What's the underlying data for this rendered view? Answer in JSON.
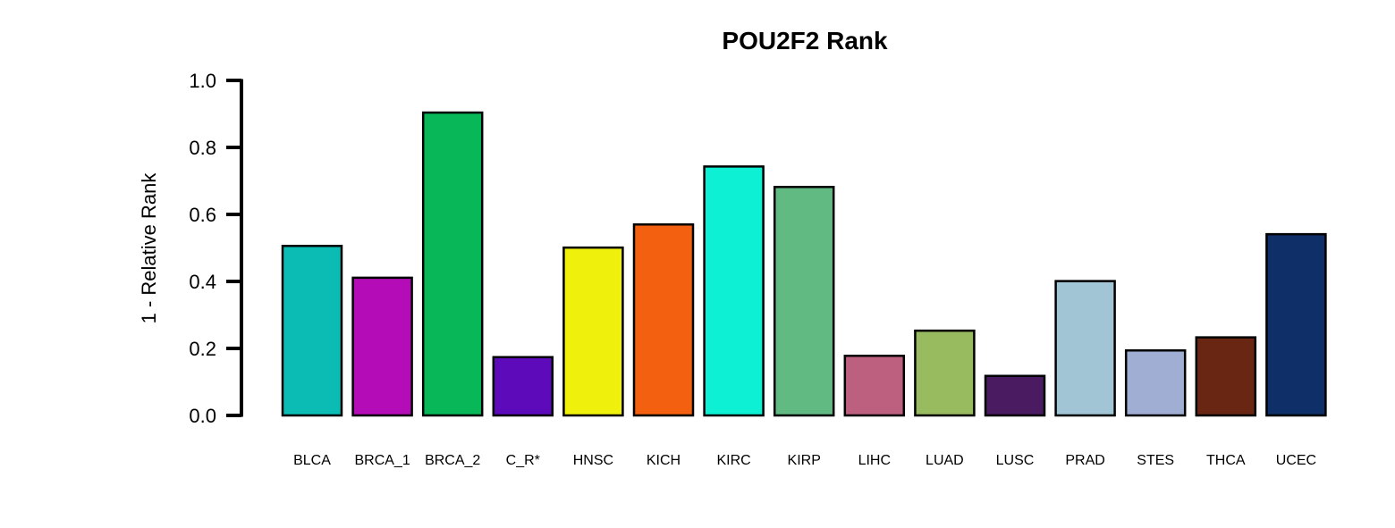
{
  "chart_data": {
    "type": "bar",
    "title": "POU2F2 Rank",
    "xlabel": "",
    "ylabel": "1 - Relative Rank",
    "ylim": [
      0,
      1.0
    ],
    "yticks": [
      "0.0",
      "0.2",
      "0.4",
      "0.6",
      "0.8",
      "1.0"
    ],
    "grid": false,
    "legend": "none",
    "categories": [
      "BLCA",
      "BRCA_1",
      "BRCA_2",
      "C_R*",
      "HNSC",
      "KICH",
      "KIRC",
      "KIRP",
      "LIHC",
      "LUAD",
      "LUSC",
      "PRAD",
      "STES",
      "THCA",
      "UCEC"
    ],
    "values": [
      0.506,
      0.411,
      0.904,
      0.174,
      0.501,
      0.57,
      0.743,
      0.682,
      0.178,
      0.253,
      0.118,
      0.401,
      0.194,
      0.233,
      0.541
    ],
    "colors": [
      "#0bbcb5",
      "#b40db8",
      "#08b858",
      "#5c0aba",
      "#eff00c",
      "#f26010",
      "#0df0d4",
      "#60ba81",
      "#bd6080",
      "#98bb60",
      "#4b1b61",
      "#a1c5d4",
      "#9faed2",
      "#692613",
      "#0e2f67"
    ]
  }
}
